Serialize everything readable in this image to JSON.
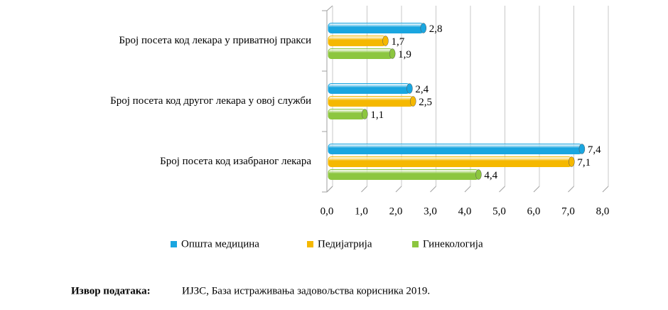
{
  "chart_data": {
    "type": "bar",
    "orientation": "horizontal",
    "categories": [
      "Број посета код лекара у приватној пракси",
      "Број посета код другог лекара у овој служби",
      "Број посета код изабраног лекара"
    ],
    "series": [
      {
        "name": "Општа медицина",
        "color": "#1aa6e0",
        "values": [
          2.8,
          2.4,
          7.4
        ],
        "value_labels": [
          "2,8",
          "2,4",
          "7,4"
        ]
      },
      {
        "name": "Педијатрија",
        "color": "#f5b800",
        "values": [
          1.7,
          2.5,
          7.1
        ],
        "value_labels": [
          "1,7",
          "2,5",
          "7,1"
        ]
      },
      {
        "name": "Гинекологија",
        "color": "#8cc63f",
        "values": [
          1.9,
          1.1,
          4.4
        ],
        "value_labels": [
          "1,9",
          "1,1",
          "4,4"
        ]
      }
    ],
    "xlim": [
      0,
      8
    ],
    "xticks": [
      {
        "value": 0,
        "label": "0,0"
      },
      {
        "value": 1,
        "label": "1,0"
      },
      {
        "value": 2,
        "label": "2,0"
      },
      {
        "value": 3,
        "label": "3,0"
      },
      {
        "value": 4,
        "label": "4,0"
      },
      {
        "value": 5,
        "label": "5,0"
      },
      {
        "value": 6,
        "label": "6,0"
      },
      {
        "value": 7,
        "label": "7,0"
      },
      {
        "value": 8,
        "label": "8,0"
      }
    ],
    "grid": true,
    "legend": "bottom",
    "source_label": "Извор података:",
    "source_text": "ИЈЗС, База истраживања задовољства корисника 2019."
  }
}
